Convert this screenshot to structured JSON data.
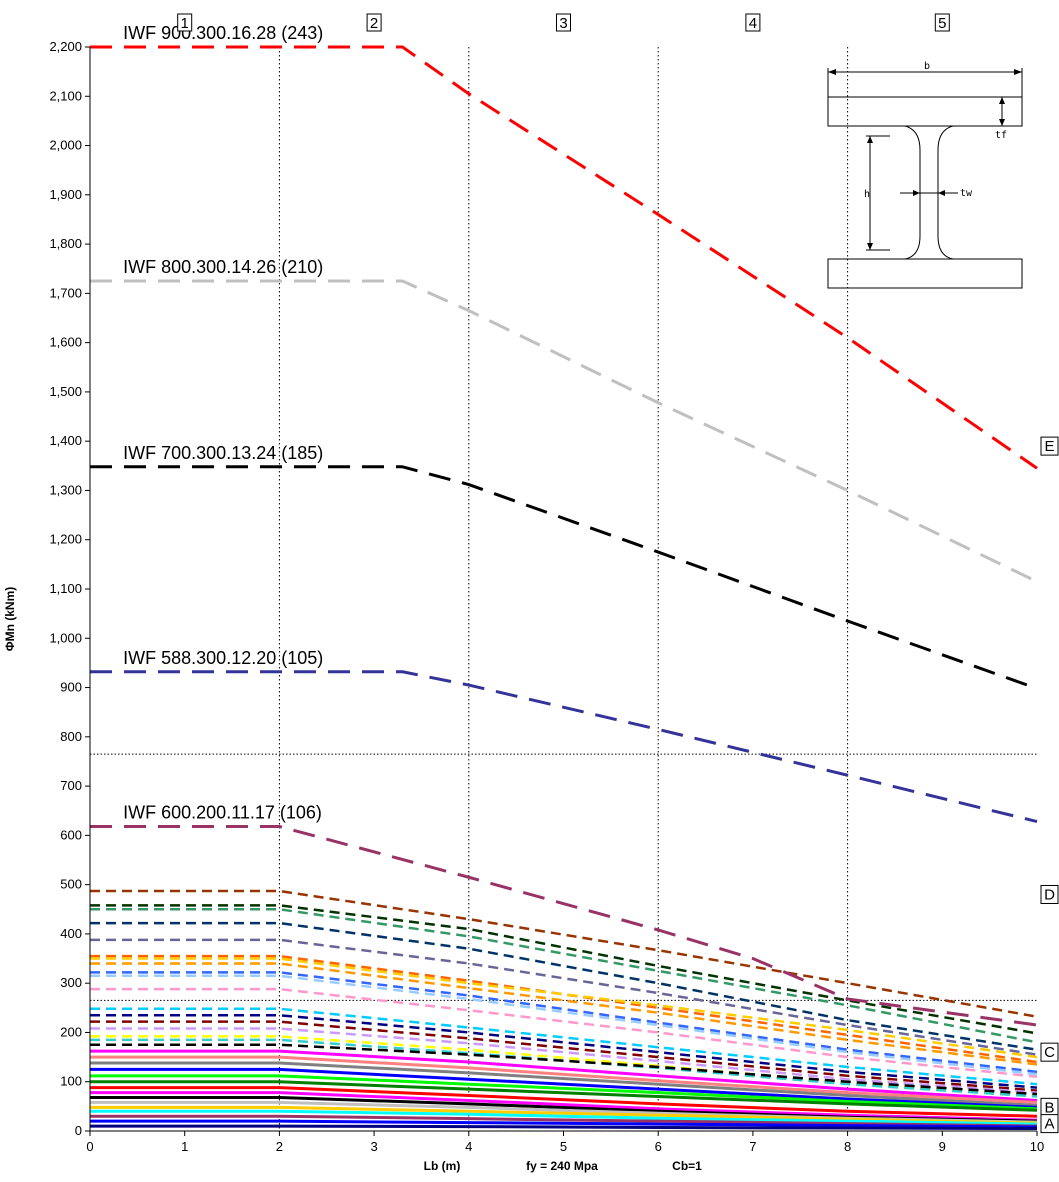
{
  "chart_data": {
    "type": "line",
    "xlabel": "Lb (m)",
    "ylabel": "ΦMn (kNm)",
    "footnote_fy": "fy = 240 Mpa",
    "footnote_cb": "Cb=1",
    "xlim": [
      0,
      10
    ],
    "ylim": [
      0,
      2200
    ],
    "x_ticks": [
      "0",
      "1",
      "2",
      "3",
      "4",
      "5",
      "6",
      "7",
      "8",
      "9",
      "10"
    ],
    "y_ticks": [
      "0",
      "100",
      "200",
      "300",
      "400",
      "500",
      "600",
      "700",
      "800",
      "900",
      "1,000",
      "1,100",
      "1,200",
      "1,300",
      "1,400",
      "1,500",
      "1,600",
      "1,700",
      "1,800",
      "1,900",
      "2,000",
      "2,100",
      "2,200"
    ],
    "grid": "dotted vertical lines at Lb = 2, 4, 6, 8; dotted horizontal lines at 765 and 265",
    "zone_numbers": [
      "1",
      "2",
      "3",
      "4",
      "5"
    ],
    "zone_letters": [
      {
        "label": "E",
        "y": 1390
      },
      {
        "label": "D",
        "y": 480
      },
      {
        "label": "C",
        "y": 160
      },
      {
        "label": "B",
        "y": 48
      },
      {
        "label": "A",
        "y": 15
      }
    ],
    "reference_lines": [
      765,
      265
    ],
    "labeled_series": [
      {
        "name": "IWF 900.300.16.28 (243)",
        "color": "#ff0000",
        "x": [
          0,
          3.3,
          4,
          6,
          8,
          10
        ],
        "y": [
          2200,
          2200,
          2105,
          1860,
          1610,
          1345
        ]
      },
      {
        "name": "IWF 800.300.14.26 (210)",
        "color": "#c0c0c0",
        "x": [
          0,
          3.3,
          4,
          6,
          8,
          10
        ],
        "y": [
          1725,
          1725,
          1665,
          1478,
          1300,
          1115
        ]
      },
      {
        "name": "IWF 700.300.13.24 (185)",
        "color": "#000000",
        "x": [
          0,
          3.3,
          4,
          6,
          8,
          10
        ],
        "y": [
          1348,
          1348,
          1312,
          1175,
          1035,
          898
        ]
      },
      {
        "name": "IWF 588.300.12.20 (105)",
        "color": "#333399",
        "x": [
          0,
          3.3,
          4,
          6,
          8,
          10
        ],
        "y": [
          932,
          932,
          905,
          815,
          722,
          628
        ]
      },
      {
        "name": "IWF 600.200.11.17 (106)",
        "color": "#993366",
        "x": [
          0,
          2,
          4,
          6,
          7,
          8,
          10
        ],
        "y": [
          618,
          618,
          515,
          408,
          350,
          268,
          215
        ]
      }
    ],
    "other_series": [
      {
        "color": "#993300",
        "y0": 487,
        "x": [
          0,
          2,
          4,
          6,
          8,
          10
        ],
        "y": [
          487,
          487,
          430,
          367,
          300,
          232
        ]
      },
      {
        "color": "#003300",
        "y0": 458,
        "x": [
          0,
          2,
          4,
          6,
          8,
          10
        ],
        "y": [
          458,
          458,
          410,
          335,
          265,
          198
        ]
      },
      {
        "color": "#339966",
        "y0": 450,
        "x": [
          0,
          2,
          4,
          6,
          8,
          10
        ],
        "y": [
          450,
          450,
          395,
          325,
          255,
          180
        ]
      },
      {
        "color": "#003366",
        "y0": 422,
        "x": [
          0,
          2,
          4,
          6,
          8,
          10
        ],
        "y": [
          422,
          422,
          370,
          300,
          225,
          165
        ]
      },
      {
        "color": "#666699",
        "y0": 388,
        "x": [
          0,
          2,
          4,
          6,
          8,
          10
        ],
        "y": [
          388,
          388,
          340,
          280,
          215,
          155
        ]
      },
      {
        "color": "#ff6600",
        "y0": 355,
        "x": [
          0,
          2,
          4,
          6,
          8,
          10
        ],
        "y": [
          355,
          355,
          305,
          250,
          195,
          140
        ]
      },
      {
        "color": "#ffcc00",
        "y0": 350,
        "x": [
          0,
          2,
          4,
          6,
          8,
          10
        ],
        "y": [
          350,
          350,
          300,
          255,
          205,
          150
        ]
      },
      {
        "color": "#ff9900",
        "y0": 340,
        "x": [
          0,
          2,
          4,
          6,
          8,
          10
        ],
        "y": [
          340,
          340,
          290,
          240,
          185,
          135
        ]
      },
      {
        "color": "#3366ff",
        "y0": 322,
        "x": [
          0,
          2,
          4,
          6,
          8,
          10
        ],
        "y": [
          322,
          322,
          275,
          220,
          165,
          120
        ]
      },
      {
        "color": "#99ccff",
        "y0": 315,
        "x": [
          0,
          2,
          4,
          6,
          8,
          10
        ],
        "y": [
          315,
          315,
          268,
          215,
          160,
          115
        ]
      },
      {
        "color": "#ff99cc",
        "y0": 288,
        "x": [
          0,
          2,
          4,
          6,
          8,
          10
        ],
        "y": [
          288,
          288,
          245,
          200,
          150,
          110
        ]
      },
      {
        "color": "#00ccff",
        "y0": 248,
        "x": [
          0,
          2,
          4,
          6,
          8,
          10
        ],
        "y": [
          248,
          248,
          210,
          170,
          130,
          95
        ]
      },
      {
        "color": "#000080",
        "y0": 235,
        "x": [
          0,
          2,
          4,
          6,
          8,
          10
        ],
        "y": [
          235,
          235,
          200,
          160,
          120,
          88
        ]
      },
      {
        "color": "#800000",
        "y0": 222,
        "x": [
          0,
          2,
          4,
          6,
          8,
          10
        ],
        "y": [
          222,
          222,
          188,
          150,
          112,
          82
        ]
      },
      {
        "color": "#cc99ff",
        "y0": 208,
        "x": [
          0,
          2,
          4,
          6,
          8,
          10
        ],
        "y": [
          208,
          208,
          178,
          142,
          105,
          78
        ]
      },
      {
        "color": "#ffff00",
        "y0": 192,
        "x": [
          0,
          2,
          4,
          6,
          8,
          10
        ],
        "y": [
          192,
          192,
          165,
          132,
          98,
          72
        ]
      },
      {
        "color": "#33cccc",
        "y0": 185,
        "x": [
          0,
          2,
          4,
          6,
          8,
          10
        ],
        "y": [
          185,
          185,
          158,
          128,
          95,
          70
        ]
      },
      {
        "color": "#000000",
        "y0": 175,
        "x": [
          0,
          2,
          4,
          6,
          8,
          10
        ],
        "y": [
          175,
          175,
          155,
          130,
          100,
          75
        ]
      },
      {
        "color": "#ff00ff",
        "y0": 162,
        "x": [
          0,
          2,
          4,
          6,
          8,
          10
        ],
        "y": [
          162,
          162,
          140,
          112,
          85,
          62
        ]
      },
      {
        "color": "#ff8080",
        "y0": 150,
        "x": [
          0,
          2,
          4,
          6,
          8,
          10
        ],
        "y": [
          150,
          150,
          128,
          102,
          78,
          58
        ]
      },
      {
        "color": "#808080",
        "y0": 138,
        "x": [
          0,
          2,
          4,
          6,
          8,
          10
        ],
        "y": [
          138,
          138,
          118,
          95,
          72,
          52
        ]
      },
      {
        "color": "#0000ff",
        "y0": 125,
        "x": [
          0,
          2,
          4,
          6,
          8,
          10
        ],
        "y": [
          125,
          125,
          105,
          85,
          65,
          48
        ]
      },
      {
        "color": "#00ff00",
        "y0": 112,
        "x": [
          0,
          2,
          4,
          6,
          8,
          10
        ],
        "y": [
          112,
          112,
          95,
          78,
          60,
          45
        ]
      },
      {
        "color": "#008000",
        "y0": 100,
        "x": [
          0,
          2,
          4,
          6,
          8,
          10
        ],
        "y": [
          100,
          100,
          85,
          70,
          55,
          42
        ]
      },
      {
        "color": "#ff0000",
        "y0": 88,
        "x": [
          0,
          2,
          4,
          6,
          8,
          10
        ],
        "y": [
          88,
          88,
          72,
          55,
          40,
          30
        ]
      },
      {
        "color": "#ff00ff",
        "y0": 78,
        "x": [
          0,
          2,
          4,
          6,
          8,
          10
        ],
        "y": [
          78,
          78,
          62,
          45,
          32,
          22
        ]
      },
      {
        "color": "#000000",
        "y0": 68,
        "x": [
          0,
          2,
          4,
          6,
          8,
          10
        ],
        "y": [
          68,
          68,
          55,
          40,
          28,
          20
        ]
      },
      {
        "color": "#c0c0c0",
        "y0": 58,
        "x": [
          0,
          2,
          4,
          6,
          8,
          10
        ],
        "y": [
          58,
          58,
          48,
          36,
          26,
          18
        ]
      },
      {
        "color": "#ffcc00",
        "y0": 48,
        "x": [
          0,
          2,
          4,
          6,
          8,
          10
        ],
        "y": [
          48,
          48,
          40,
          32,
          24,
          16
        ]
      },
      {
        "color": "#00ffff",
        "y0": 40,
        "x": [
          0,
          2,
          4,
          6,
          8,
          10
        ],
        "y": [
          40,
          40,
          34,
          26,
          20,
          14
        ]
      },
      {
        "color": "#993366",
        "y0": 30,
        "x": [
          0,
          2,
          4,
          6,
          8,
          10
        ],
        "y": [
          30,
          30,
          25,
          20,
          15,
          10
        ]
      },
      {
        "color": "#0000ff",
        "y0": 20,
        "x": [
          0,
          2,
          4,
          6,
          8,
          10
        ],
        "y": [
          20,
          20,
          17,
          14,
          11,
          8
        ]
      },
      {
        "color": "#000080",
        "y0": 10,
        "x": [
          0,
          2,
          4,
          6,
          8,
          10
        ],
        "y": [
          10,
          10,
          9,
          7,
          6,
          5
        ]
      }
    ],
    "inset": {
      "type": "i-beam cross-section",
      "labels": [
        "b",
        "tf",
        "h",
        "tw"
      ]
    }
  }
}
